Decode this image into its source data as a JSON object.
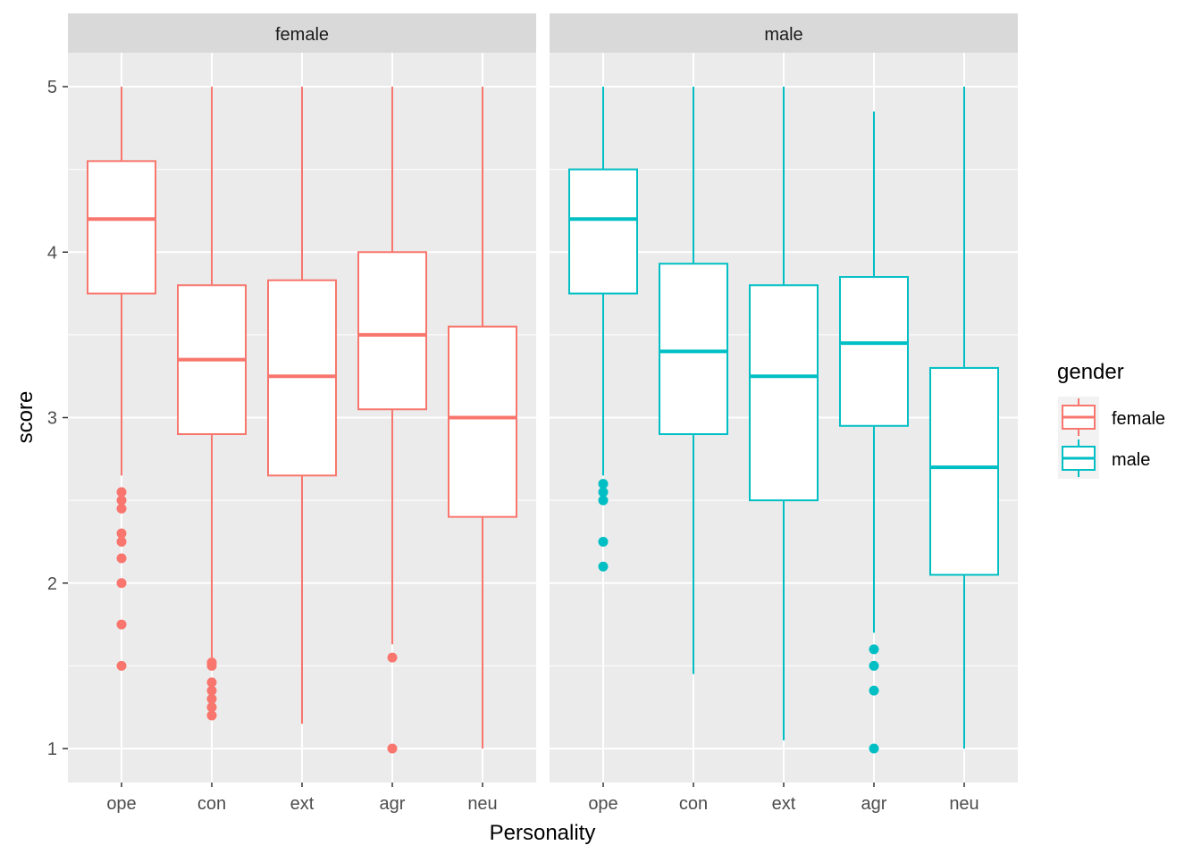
{
  "chart_data": {
    "type": "boxplot",
    "xlabel": "Personality",
    "ylabel": "score",
    "ylim": [
      0.8,
      5.2
    ],
    "yticks": [
      1,
      2,
      3,
      4,
      5
    ],
    "categories": [
      "ope",
      "con",
      "ext",
      "agr",
      "neu"
    ],
    "grid": true,
    "legend": {
      "title": "gender",
      "position": "right",
      "entries": [
        {
          "name": "female",
          "color": "#F8766D"
        },
        {
          "name": "male",
          "color": "#00BFC4"
        }
      ]
    },
    "panels": [
      {
        "strip": "female",
        "color": "#F8766D",
        "boxes": [
          {
            "cat": "ope",
            "lower": 2.65,
            "q1": 3.75,
            "median": 4.2,
            "q3": 4.55,
            "upper": 5,
            "outliers": [
              2.55,
              2.5,
              2.45,
              2.3,
              2.25,
              2.15,
              2.0,
              1.75,
              1.5
            ]
          },
          {
            "cat": "con",
            "lower": 1.55,
            "q1": 2.9,
            "median": 3.35,
            "q3": 3.8,
            "upper": 5,
            "outliers": [
              1.52,
              1.5,
              1.4,
              1.35,
              1.3,
              1.25,
              1.2
            ]
          },
          {
            "cat": "ext",
            "lower": 1.15,
            "q1": 2.65,
            "median": 3.25,
            "q3": 3.83,
            "upper": 5,
            "outliers": []
          },
          {
            "cat": "agr",
            "lower": 1.63,
            "q1": 3.05,
            "median": 3.5,
            "q3": 4.0,
            "upper": 5,
            "outliers": [
              1.55,
              1.0
            ]
          },
          {
            "cat": "neu",
            "lower": 1.0,
            "q1": 2.4,
            "median": 3.0,
            "q3": 3.55,
            "upper": 5,
            "outliers": []
          }
        ]
      },
      {
        "strip": "male",
        "color": "#00BFC4",
        "boxes": [
          {
            "cat": "ope",
            "lower": 2.65,
            "q1": 3.75,
            "median": 4.2,
            "q3": 4.5,
            "upper": 5,
            "outliers": [
              2.6,
              2.55,
              2.5,
              2.25,
              2.1
            ]
          },
          {
            "cat": "con",
            "lower": 1.45,
            "q1": 2.9,
            "median": 3.4,
            "q3": 3.93,
            "upper": 5,
            "outliers": []
          },
          {
            "cat": "ext",
            "lower": 1.05,
            "q1": 2.5,
            "median": 3.25,
            "q3": 3.8,
            "upper": 5,
            "outliers": []
          },
          {
            "cat": "agr",
            "lower": 1.7,
            "q1": 2.95,
            "median": 3.45,
            "q3": 3.85,
            "upper": 4.85,
            "outliers": [
              1.6,
              1.5,
              1.35,
              1.0
            ]
          },
          {
            "cat": "neu",
            "lower": 1.0,
            "q1": 2.05,
            "median": 2.7,
            "q3": 3.3,
            "upper": 5,
            "outliers": []
          }
        ]
      }
    ]
  }
}
